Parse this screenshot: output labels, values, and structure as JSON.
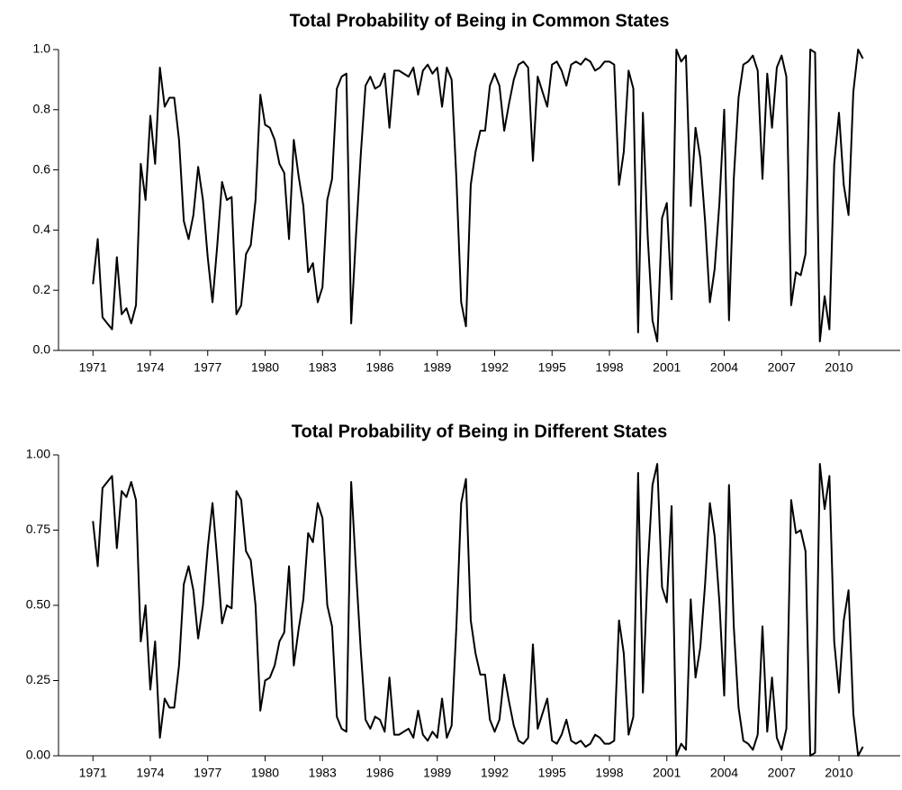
{
  "chart_data": [
    {
      "type": "line",
      "title": "Total Probability of Being in Common States",
      "color": "#000000",
      "x": [
        1971,
        1971.25,
        1971.5,
        1971.75,
        1972,
        1972.25,
        1972.5,
        1972.75,
        1973,
        1973.25,
        1973.5,
        1973.75,
        1974,
        1974.25,
        1974.5,
        1974.75,
        1975,
        1975.25,
        1975.5,
        1975.75,
        1976,
        1976.25,
        1976.5,
        1976.75,
        1977,
        1977.25,
        1977.5,
        1977.75,
        1978,
        1978.25,
        1978.5,
        1978.75,
        1979,
        1979.25,
        1979.5,
        1979.75,
        1980,
        1980.25,
        1980.5,
        1980.75,
        1981,
        1981.25,
        1981.5,
        1981.75,
        1982,
        1982.25,
        1982.5,
        1982.75,
        1983,
        1983.25,
        1983.5,
        1983.75,
        1984,
        1984.25,
        1984.5,
        1984.75,
        1985,
        1985.25,
        1985.5,
        1985.75,
        1986,
        1986.25,
        1986.5,
        1986.75,
        1987,
        1987.25,
        1987.5,
        1987.75,
        1988,
        1988.25,
        1988.5,
        1988.75,
        1989,
        1989.25,
        1989.5,
        1989.75,
        1990,
        1990.25,
        1990.5,
        1990.75,
        1991,
        1991.25,
        1991.5,
        1991.75,
        1992,
        1992.25,
        1992.5,
        1992.75,
        1993,
        1993.25,
        1993.5,
        1993.75,
        1994,
        1994.25,
        1994.5,
        1994.75,
        1995,
        1995.25,
        1995.5,
        1995.75,
        1996,
        1996.25,
        1996.5,
        1996.75,
        1997,
        1997.25,
        1997.5,
        1997.75,
        1998,
        1998.25,
        1998.5,
        1998.75,
        1999,
        1999.25,
        1999.5,
        1999.75,
        2000,
        2000.25,
        2000.5,
        2000.75,
        2001,
        2001.25,
        2001.5,
        2001.75,
        2002,
        2002.25,
        2002.5,
        2002.75,
        2003,
        2003.25,
        2003.5,
        2003.75,
        2004,
        2004.25,
        2004.5,
        2004.75,
        2005,
        2005.25,
        2005.5,
        2005.75,
        2006,
        2006.25,
        2006.5,
        2006.75,
        2007,
        2007.25,
        2007.5,
        2007.75,
        2008,
        2008.25,
        2008.5,
        2008.75,
        2009,
        2009.25,
        2009.5,
        2009.75,
        2010,
        2010.25,
        2010.5,
        2010.75,
        2011,
        2011.25
      ],
      "values": [
        0.22,
        0.37,
        0.11,
        0.09,
        0.07,
        0.31,
        0.12,
        0.14,
        0.09,
        0.15,
        0.62,
        0.5,
        0.78,
        0.62,
        0.94,
        0.81,
        0.84,
        0.84,
        0.7,
        0.43,
        0.37,
        0.45,
        0.61,
        0.5,
        0.31,
        0.16,
        0.35,
        0.56,
        0.5,
        0.51,
        0.12,
        0.15,
        0.32,
        0.35,
        0.5,
        0.85,
        0.75,
        0.74,
        0.7,
        0.62,
        0.59,
        0.37,
        0.7,
        0.58,
        0.48,
        0.26,
        0.29,
        0.16,
        0.21,
        0.5,
        0.57,
        0.87,
        0.91,
        0.92,
        0.09,
        0.38,
        0.65,
        0.88,
        0.91,
        0.87,
        0.88,
        0.92,
        0.74,
        0.93,
        0.93,
        0.92,
        0.91,
        0.94,
        0.85,
        0.93,
        0.95,
        0.92,
        0.94,
        0.81,
        0.94,
        0.9,
        0.57,
        0.16,
        0.08,
        0.55,
        0.66,
        0.73,
        0.73,
        0.88,
        0.92,
        0.88,
        0.73,
        0.82,
        0.9,
        0.95,
        0.96,
        0.94,
        0.63,
        0.91,
        0.86,
        0.81,
        0.95,
        0.96,
        0.93,
        0.88,
        0.95,
        0.96,
        0.95,
        0.97,
        0.96,
        0.93,
        0.94,
        0.96,
        0.96,
        0.95,
        0.55,
        0.66,
        0.93,
        0.87,
        0.06,
        0.79,
        0.38,
        0.1,
        0.03,
        0.44,
        0.49,
        0.17,
        1.0,
        0.96,
        0.98,
        0.48,
        0.74,
        0.64,
        0.43,
        0.16,
        0.27,
        0.49,
        0.8,
        0.1,
        0.57,
        0.84,
        0.95,
        0.96,
        0.98,
        0.93,
        0.57,
        0.92,
        0.74,
        0.94,
        0.98,
        0.91,
        0.15,
        0.26,
        0.25,
        0.32,
        1.0,
        0.99,
        0.03,
        0.18,
        0.07,
        0.62,
        0.79,
        0.55,
        0.45,
        0.86,
        1.0,
        0.97
      ],
      "xlim": [
        1969.2,
        2013.2
      ],
      "xticks": [
        1971,
        1974,
        1977,
        1980,
        1983,
        1986,
        1989,
        1992,
        1995,
        1998,
        2001,
        2004,
        2007,
        2010
      ],
      "ylim": [
        0,
        1
      ],
      "yticks": [
        {
          "value": 0,
          "label": "0.0"
        },
        0.2,
        0.4,
        0.6,
        0.8,
        {
          "value": 1,
          "label": "1.0"
        }
      ]
    },
    {
      "type": "line",
      "title": "Total Probability of Being in Different States",
      "color": "#000000",
      "x": [
        1971,
        1971.25,
        1971.5,
        1971.75,
        1972,
        1972.25,
        1972.5,
        1972.75,
        1973,
        1973.25,
        1973.5,
        1973.75,
        1974,
        1974.25,
        1974.5,
        1974.75,
        1975,
        1975.25,
        1975.5,
        1975.75,
        1976,
        1976.25,
        1976.5,
        1976.75,
        1977,
        1977.25,
        1977.5,
        1977.75,
        1978,
        1978.25,
        1978.5,
        1978.75,
        1979,
        1979.25,
        1979.5,
        1979.75,
        1980,
        1980.25,
        1980.5,
        1980.75,
        1981,
        1981.25,
        1981.5,
        1981.75,
        1982,
        1982.25,
        1982.5,
        1982.75,
        1983,
        1983.25,
        1983.5,
        1983.75,
        1984,
        1984.25,
        1984.5,
        1984.75,
        1985,
        1985.25,
        1985.5,
        1985.75,
        1986,
        1986.25,
        1986.5,
        1986.75,
        1987,
        1987.25,
        1987.5,
        1987.75,
        1988,
        1988.25,
        1988.5,
        1988.75,
        1989,
        1989.25,
        1989.5,
        1989.75,
        1990,
        1990.25,
        1990.5,
        1990.75,
        1991,
        1991.25,
        1991.5,
        1991.75,
        1992,
        1992.25,
        1992.5,
        1992.75,
        1993,
        1993.25,
        1993.5,
        1993.75,
        1994,
        1994.25,
        1994.5,
        1994.75,
        1995,
        1995.25,
        1995.5,
        1995.75,
        1996,
        1996.25,
        1996.5,
        1996.75,
        1997,
        1997.25,
        1997.5,
        1997.75,
        1998,
        1998.25,
        1998.5,
        1998.75,
        1999,
        1999.25,
        1999.5,
        1999.75,
        2000,
        2000.25,
        2000.5,
        2000.75,
        2001,
        2001.25,
        2001.5,
        2001.75,
        2002,
        2002.25,
        2002.5,
        2002.75,
        2003,
        2003.25,
        2003.5,
        2003.75,
        2004,
        2004.25,
        2004.5,
        2004.75,
        2005,
        2005.25,
        2005.5,
        2005.75,
        2006,
        2006.25,
        2006.5,
        2006.75,
        2007,
        2007.25,
        2007.5,
        2007.75,
        2008,
        2008.25,
        2008.5,
        2008.75,
        2009,
        2009.25,
        2009.5,
        2009.75,
        2010,
        2010.25,
        2010.5,
        2010.75,
        2011,
        2011.25
      ],
      "values": [
        0.78,
        0.63,
        0.89,
        0.91,
        0.93,
        0.69,
        0.88,
        0.86,
        0.91,
        0.85,
        0.38,
        0.5,
        0.22,
        0.38,
        0.06,
        0.19,
        0.16,
        0.16,
        0.3,
        0.57,
        0.63,
        0.55,
        0.39,
        0.5,
        0.69,
        0.84,
        0.65,
        0.44,
        0.5,
        0.49,
        0.88,
        0.85,
        0.68,
        0.65,
        0.5,
        0.15,
        0.25,
        0.26,
        0.3,
        0.38,
        0.41,
        0.63,
        0.3,
        0.42,
        0.52,
        0.74,
        0.71,
        0.84,
        0.79,
        0.5,
        0.43,
        0.13,
        0.09,
        0.08,
        0.91,
        0.62,
        0.35,
        0.12,
        0.09,
        0.13,
        0.12,
        0.08,
        0.26,
        0.07,
        0.07,
        0.08,
        0.09,
        0.06,
        0.15,
        0.07,
        0.05,
        0.08,
        0.06,
        0.19,
        0.06,
        0.1,
        0.43,
        0.84,
        0.92,
        0.45,
        0.34,
        0.27,
        0.27,
        0.12,
        0.08,
        0.12,
        0.27,
        0.18,
        0.1,
        0.05,
        0.04,
        0.06,
        0.37,
        0.09,
        0.14,
        0.19,
        0.05,
        0.04,
        0.07,
        0.12,
        0.05,
        0.04,
        0.05,
        0.03,
        0.04,
        0.07,
        0.06,
        0.04,
        0.04,
        0.05,
        0.45,
        0.34,
        0.07,
        0.13,
        0.94,
        0.21,
        0.62,
        0.9,
        0.97,
        0.56,
        0.51,
        0.83,
        0.0,
        0.04,
        0.02,
        0.52,
        0.26,
        0.36,
        0.57,
        0.84,
        0.73,
        0.51,
        0.2,
        0.9,
        0.43,
        0.16,
        0.05,
        0.04,
        0.02,
        0.07,
        0.43,
        0.08,
        0.26,
        0.06,
        0.02,
        0.09,
        0.85,
        0.74,
        0.75,
        0.68,
        0.0,
        0.01,
        0.97,
        0.82,
        0.93,
        0.38,
        0.21,
        0.45,
        0.55,
        0.14,
        0.0,
        0.03
      ],
      "xlim": [
        1969.2,
        2013.2
      ],
      "xticks": [
        1971,
        1974,
        1977,
        1980,
        1983,
        1986,
        1989,
        1992,
        1995,
        1998,
        2001,
        2004,
        2007,
        2010
      ],
      "ylim": [
        0,
        1
      ],
      "yticks": [
        {
          "value": 0,
          "label": "0.00"
        },
        0.25,
        {
          "value": 0.5,
          "label": "0.50"
        },
        0.75,
        {
          "value": 1,
          "label": "1.00"
        }
      ]
    }
  ]
}
